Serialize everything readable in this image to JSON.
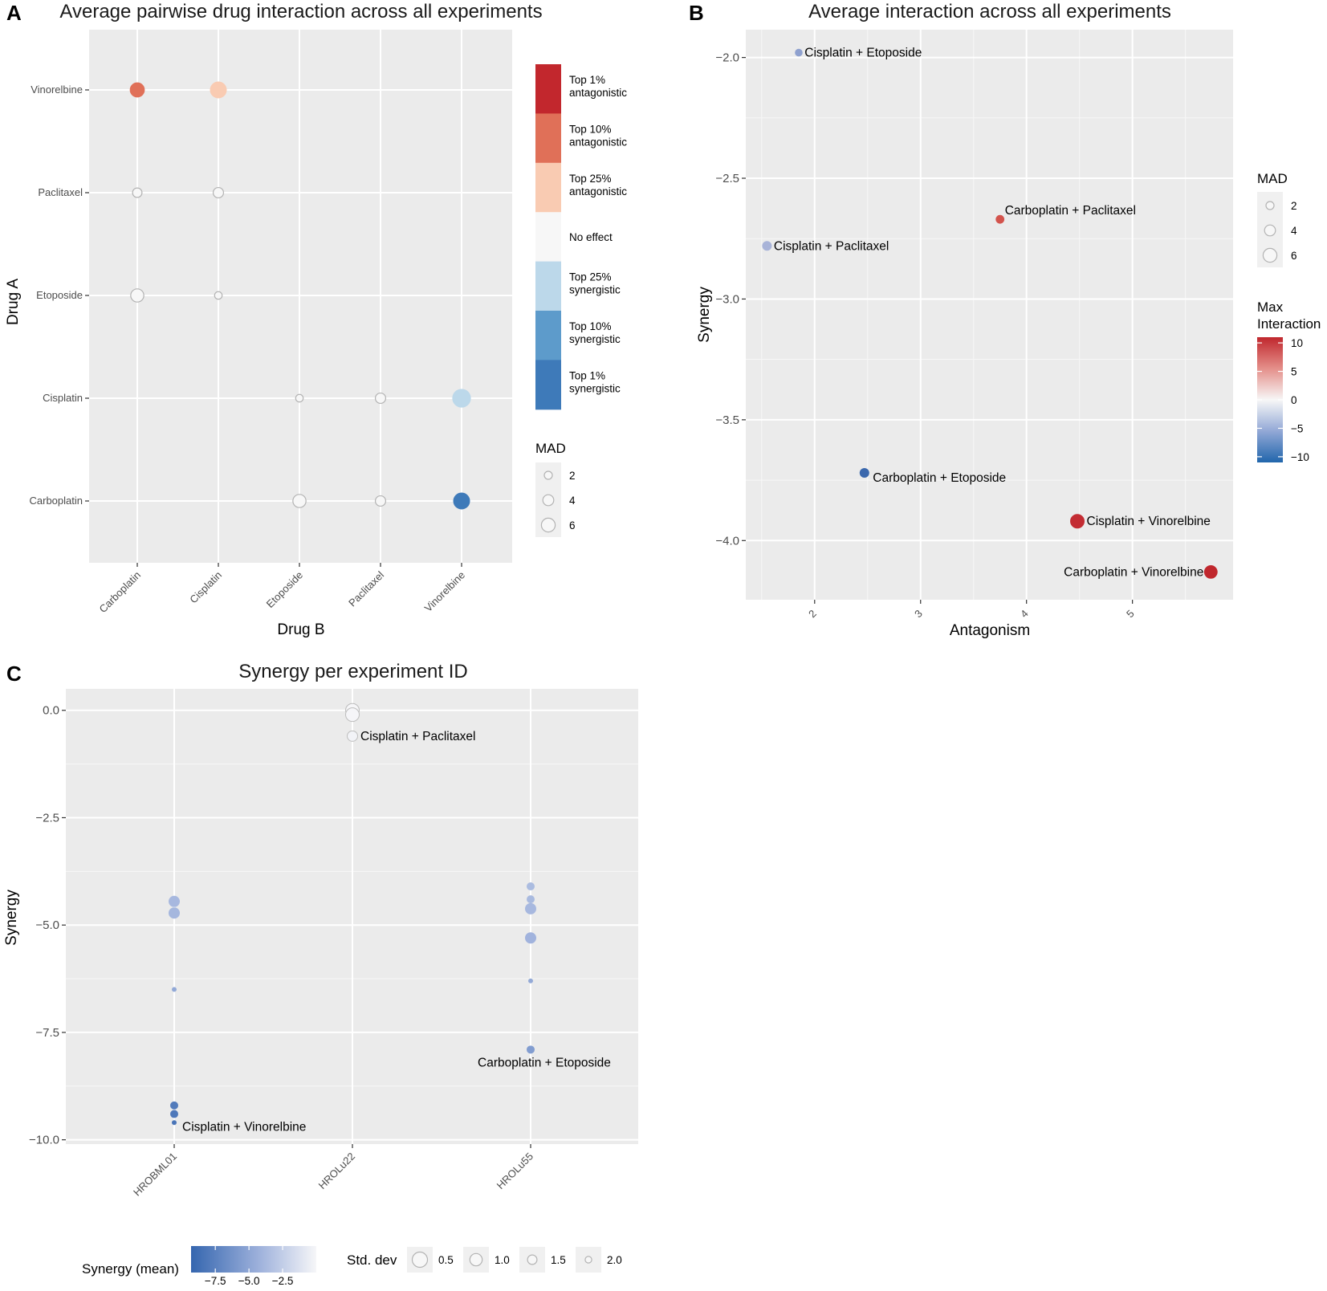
{
  "colors": {
    "panel_bg": "#ebebeb",
    "grid": "#ffffff",
    "top1_antagonistic": "#c2272d",
    "top10_antagonistic": "#e07058",
    "top25_antagonistic": "#f9cbb2",
    "no_effect": "#f7f7f7",
    "top25_synergistic": "#bcd8ea",
    "top10_synergistic": "#5d9bcb",
    "top1_synergistic": "#3e7ab9"
  },
  "chart_data": [
    {
      "panel": "A",
      "type": "scatter",
      "title": "Average pairwise drug interaction across all experiments",
      "xlabel": "Drug B",
      "ylabel": "Drug A",
      "categories_x": [
        "Carboplatin",
        "Cisplatin",
        "Etoposide",
        "Paclitaxel",
        "Vinorelbine"
      ],
      "categories_y": [
        "Vinorelbine",
        "Paclitaxel",
        "Etoposide",
        "Cisplatin",
        "Carboplatin"
      ],
      "points": [
        {
          "x": "Carboplatin",
          "y": "Vinorelbine",
          "mad": 5,
          "category": "top10_antagonistic"
        },
        {
          "x": "Cisplatin",
          "y": "Vinorelbine",
          "mad": 6,
          "category": "top25_antagonistic"
        },
        {
          "x": "Carboplatin",
          "y": "Paclitaxel",
          "mad": 2.5,
          "category": "no_effect"
        },
        {
          "x": "Cisplatin",
          "y": "Paclitaxel",
          "mad": 3,
          "category": "no_effect"
        },
        {
          "x": "Carboplatin",
          "y": "Etoposide",
          "mad": 4.5,
          "category": "no_effect"
        },
        {
          "x": "Cisplatin",
          "y": "Etoposide",
          "mad": 1.5,
          "category": "no_effect"
        },
        {
          "x": "Etoposide",
          "y": "Cisplatin",
          "mad": 1.5,
          "category": "no_effect"
        },
        {
          "x": "Paclitaxel",
          "y": "Cisplatin",
          "mad": 3,
          "category": "no_effect"
        },
        {
          "x": "Vinorelbine",
          "y": "Cisplatin",
          "mad": 7,
          "category": "top25_synergistic"
        },
        {
          "x": "Etoposide",
          "y": "Carboplatin",
          "mad": 4.5,
          "category": "no_effect"
        },
        {
          "x": "Paclitaxel",
          "y": "Carboplatin",
          "mad": 3,
          "category": "no_effect"
        },
        {
          "x": "Vinorelbine",
          "y": "Carboplatin",
          "mad": 6,
          "category": "top1_synergistic"
        }
      ],
      "legend_interaction": [
        {
          "key": "top1_antagonistic",
          "line1": "Top 1%",
          "line2": "antagonistic"
        },
        {
          "key": "top10_antagonistic",
          "line1": "Top 10%",
          "line2": "antagonistic"
        },
        {
          "key": "top25_antagonistic",
          "line1": "Top 25%",
          "line2": "antagonistic"
        },
        {
          "key": "no_effect",
          "line1": "No effect",
          "line2": ""
        },
        {
          "key": "top25_synergistic",
          "line1": "Top 25%",
          "line2": "synergistic"
        },
        {
          "key": "top10_synergistic",
          "line1": "Top 10%",
          "line2": "synergistic"
        },
        {
          "key": "top1_synergistic",
          "line1": "Top 1%",
          "line2": "synergistic"
        }
      ],
      "legend_size": {
        "title": "MAD",
        "values": [
          2,
          4,
          6
        ]
      }
    },
    {
      "panel": "B",
      "type": "scatter",
      "title": "Average interaction across all experiments",
      "xlabel": "Antagonism",
      "ylabel": "Synergy",
      "xlim": [
        1.35,
        5.95
      ],
      "ylim": [
        -4.245,
        -1.885
      ],
      "xticks": [
        2,
        3,
        4,
        5
      ],
      "yticks": [
        -2.0,
        -2.5,
        -3.0,
        -3.5,
        -4.0
      ],
      "ytick_labels": [
        "−2.0",
        "−2.5",
        "−3.0",
        "−3.5",
        "−4.0"
      ],
      "points": [
        {
          "label": "Cisplatin + Etoposide",
          "x": 1.85,
          "y": -1.98,
          "mad": 1.5,
          "color": "#8fa1cf",
          "label_side": "right"
        },
        {
          "label": "Carboplatin + Paclitaxel",
          "x": 3.75,
          "y": -2.67,
          "mad": 2,
          "color": "#d3534c",
          "label_side": "right-up"
        },
        {
          "label": "Cisplatin + Paclitaxel",
          "x": 1.55,
          "y": -2.78,
          "mad": 2.5,
          "color": "#a8b3d8",
          "label_side": "right"
        },
        {
          "label": "Carboplatin + Etoposide",
          "x": 2.47,
          "y": -3.72,
          "mad": 2.5,
          "color": "#3b68ad",
          "label_side": "right-down"
        },
        {
          "label": "Cisplatin + Vinorelbine",
          "x": 4.48,
          "y": -3.92,
          "mad": 5,
          "color": "#c32c33",
          "label_side": "right"
        },
        {
          "label": "Carboplatin + Vinorelbine",
          "x": 5.74,
          "y": -4.13,
          "mad": 4.5,
          "color": "#c0272d",
          "label_side": "left"
        }
      ],
      "legend_size": {
        "title": "MAD",
        "values": [
          2,
          4,
          6
        ]
      },
      "legend_color": {
        "title_line1": "Max",
        "title_line2": "Interaction",
        "ticks": [
          10,
          5,
          0,
          -5,
          -10
        ],
        "tick_labels": [
          "10",
          "5",
          "0",
          "−5",
          "−10"
        ],
        "range": [
          -11,
          11
        ]
      }
    },
    {
      "panel": "C",
      "type": "scatter",
      "title": "Synergy per experiment ID",
      "xlabel": "",
      "ylabel": "Synergy",
      "categories": [
        "HROBML01",
        "HROLu22",
        "HROLu55"
      ],
      "ylim": [
        -10.1,
        0.5
      ],
      "yticks": [
        0.0,
        -2.5,
        -5.0,
        -7.5,
        -10.0
      ],
      "ytick_labels": [
        "0.0",
        "−2.5",
        "−5.0",
        "−7.5",
        "−10.0"
      ],
      "points": [
        {
          "x": "HROBML01",
          "y": -4.45,
          "std": 1.0,
          "mean": -3.8
        },
        {
          "x": "HROBML01",
          "y": -4.72,
          "std": 1.0,
          "mean": -3.9
        },
        {
          "x": "HROBML01",
          "y": -6.5,
          "std": 2.0,
          "mean": -4.8
        },
        {
          "x": "HROBML01",
          "y": -9.2,
          "std": 1.5,
          "mean": -7.9
        },
        {
          "x": "HROBML01",
          "y": -9.4,
          "std": 1.5,
          "mean": -8.1
        },
        {
          "x": "HROBML01",
          "y": -9.6,
          "std": 2.0,
          "mean": -8.3
        },
        {
          "x": "HROLu22",
          "y": 0.0,
          "std": 0.5,
          "mean": 0.0
        },
        {
          "x": "HROLu22",
          "y": -0.1,
          "std": 0.5,
          "mean": -0.05
        },
        {
          "x": "HROLu22",
          "y": -0.6,
          "std": 1.0,
          "mean": -0.2
        },
        {
          "x": "HROLu55",
          "y": -4.1,
          "std": 1.5,
          "mean": -3.6
        },
        {
          "x": "HROLu55",
          "y": -4.4,
          "std": 1.5,
          "mean": -3.7
        },
        {
          "x": "HROLu55",
          "y": -4.62,
          "std": 1.0,
          "mean": -3.8
        },
        {
          "x": "HROLu55",
          "y": -5.3,
          "std": 1.0,
          "mean": -4.1
        },
        {
          "x": "HROLu55",
          "y": -6.3,
          "std": 2.0,
          "mean": -4.7
        },
        {
          "x": "HROLu55",
          "y": -7.9,
          "std": 1.5,
          "mean": -5.6
        }
      ],
      "annotations": [
        {
          "label": "Cisplatin + Paclitaxel",
          "x": "HROLu22",
          "y": -0.6,
          "side": "right"
        },
        {
          "label": "Carboplatin + Etoposide",
          "x": "HROLu55",
          "y": -8.2,
          "side": "center"
        },
        {
          "label": "Cisplatin + Vinorelbine",
          "x": "HROBML01",
          "y": -9.7,
          "side": "right"
        }
      ],
      "legend_color": {
        "title": "Synergy (mean)",
        "ticks": [
          -7.5,
          -5.0,
          -2.5
        ],
        "tick_labels": [
          "−7.5",
          "−5.0",
          "−2.5"
        ],
        "range": [
          -9.3,
          0
        ]
      },
      "legend_size": {
        "title": "Std. dev",
        "values": [
          0.5,
          1.0,
          1.5,
          2.0
        ],
        "labels": [
          "0.5",
          "1.0",
          "1.5",
          "2.0"
        ]
      }
    }
  ]
}
